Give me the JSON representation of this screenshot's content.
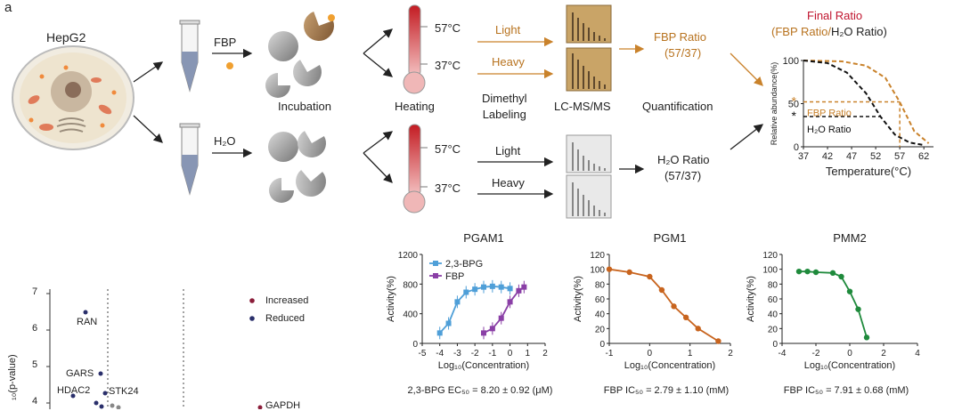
{
  "panel_label": "a",
  "workflow": {
    "cell_label": "HepG2",
    "reagent_fbp": "FBP",
    "reagent_h2o": "H₂O",
    "step_incubation": "Incubation",
    "step_heating": "Heating",
    "step_labeling": "Dimethyl\nLabeling",
    "step_lcms": "LC-MS/MS",
    "step_quant": "Quantification",
    "temp_high": "57°C",
    "temp_low": "37°C",
    "light": "Light",
    "heavy": "Heavy",
    "fbp_ratio": "FBP Ratio",
    "h2o_ratio": "H₂O Ratio",
    "ratio_sub": "(57/37)",
    "final_ratio_title": "Final Ratio",
    "final_ratio_sub_a": "(FBP Ratio/",
    "final_ratio_sub_b": "H₂O Ratio)",
    "colors": {
      "fbp": "#c9822b",
      "h2o": "#111111",
      "title": "#c0152f"
    }
  },
  "volcano": {
    "ylabel": "₁₀(p-value)",
    "legend": [
      {
        "label": "Increased",
        "color": "#8b1d3a"
      },
      {
        "label": "Reduced",
        "color": "#2a2f6b"
      }
    ],
    "points": [
      {
        "label": "RAN"
      },
      {
        "label": "GARS"
      },
      {
        "label": "HDAC2"
      },
      {
        "label": "STK24"
      },
      {
        "label": "GAPDH"
      }
    ],
    "yticks": [
      "7",
      "6",
      "5",
      "4"
    ]
  },
  "chart_data": [
    {
      "type": "line",
      "title": "Final Ratio",
      "xlabel": "Temperature(°C)",
      "ylabel": "Relative abundance(%)",
      "xticks": [
        "37",
        "42",
        "47",
        "52",
        "57",
        "62"
      ],
      "yticks": [
        "0",
        "50",
        "100"
      ],
      "xlim": [
        37,
        64
      ],
      "ylim": [
        0,
        100
      ],
      "annotations": [
        "FBP Ratio",
        "H₂O Ratio"
      ],
      "series": [
        {
          "color": "#c9822b",
          "x": [
            37,
            45,
            50,
            54,
            57,
            60,
            63
          ],
          "y": [
            100,
            99,
            94,
            80,
            52,
            18,
            4
          ]
        },
        {
          "color": "#111111",
          "x": [
            37,
            42,
            46,
            50,
            53,
            56,
            59,
            62
          ],
          "y": [
            100,
            97,
            86,
            62,
            35,
            14,
            5,
            2
          ]
        }
      ]
    },
    {
      "type": "scatter",
      "title": "PGAM1",
      "xlabel": "Log₁₀(Concentration)",
      "ylabel": "Activity(%)",
      "xticks": [
        "-5",
        "-4",
        "-3",
        "-2",
        "-1",
        "0",
        "1",
        "2"
      ],
      "yticks": [
        "0",
        "400",
        "800",
        "1200"
      ],
      "xlim": [
        -5,
        2
      ],
      "ylim": [
        0,
        1200
      ],
      "series": [
        {
          "name": "2,3-BPG",
          "color": "#4f9fd8",
          "x": [
            -4,
            -3.5,
            -3,
            -2.5,
            -2,
            -1.5,
            -1,
            -0.5,
            0
          ],
          "y": [
            140,
            270,
            560,
            690,
            730,
            760,
            770,
            760,
            740
          ]
        },
        {
          "name": "FBP",
          "color": "#8a3fa6",
          "x": [
            -1.5,
            -1,
            -0.5,
            0,
            0.5,
            0.8
          ],
          "y": [
            140,
            200,
            340,
            560,
            710,
            760
          ]
        }
      ],
      "footnote": "2,3-BPG EC₅₀ = 8.20 ± 0.92 (μM)"
    },
    {
      "type": "scatter",
      "title": "PGM1",
      "xlabel": "Log₁₀(Concentration)",
      "ylabel": "Activity(%)",
      "xticks": [
        "-1",
        "0",
        "1",
        "2"
      ],
      "yticks": [
        "0",
        "20",
        "40",
        "60",
        "80",
        "100",
        "120"
      ],
      "xlim": [
        -1,
        2
      ],
      "ylim": [
        0,
        120
      ],
      "series": [
        {
          "color": "#c8641e",
          "x": [
            -1,
            -0.5,
            0,
            0.3,
            0.6,
            0.9,
            1.2,
            1.7
          ],
          "y": [
            100,
            96,
            90,
            72,
            50,
            35,
            20,
            3
          ]
        }
      ],
      "footnote": "FBP IC₅₀ = 2.79 ± 1.10 (mM)"
    },
    {
      "type": "scatter",
      "title": "PMM2",
      "xlabel": "Log₁₀(Concentration)",
      "ylabel": "Activity(%)",
      "xticks": [
        "-4",
        "-2",
        "0",
        "2",
        "4"
      ],
      "yticks": [
        "0",
        "20",
        "40",
        "60",
        "80",
        "100",
        "120"
      ],
      "xlim": [
        -4,
        4
      ],
      "ylim": [
        0,
        120
      ],
      "series": [
        {
          "color": "#1f8a3c",
          "x": [
            -3,
            -2.5,
            -2,
            -1,
            -0.5,
            0,
            0.5,
            1
          ],
          "y": [
            97,
            97,
            96,
            95,
            90,
            70,
            46,
            8
          ]
        }
      ],
      "footnote": "FBP IC₅₀ = 7.91 ± 0.68 (mM)"
    }
  ]
}
